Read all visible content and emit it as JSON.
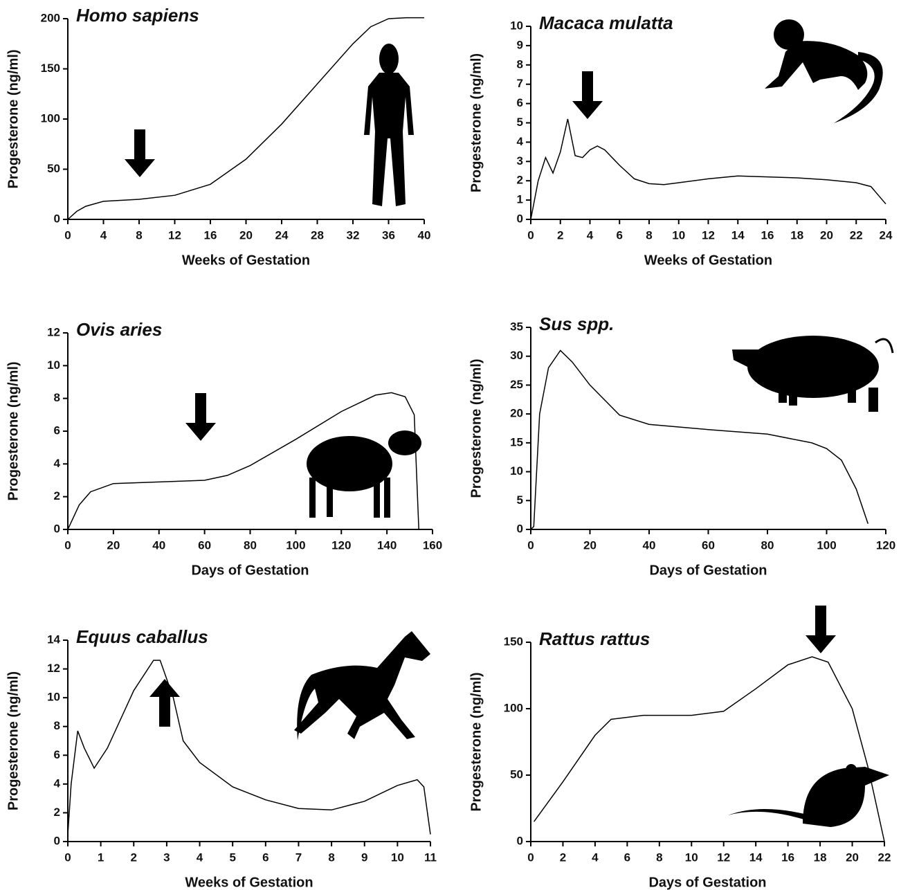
{
  "chart_data": [
    {
      "type": "line",
      "title": "Homo sapiens",
      "xlabel": "Weeks of Gestation",
      "ylabel": "Progesterone (ng/ml)",
      "color": "#000000",
      "x": [
        0,
        1,
        2,
        4,
        8,
        12,
        16,
        20,
        24,
        28,
        32,
        34,
        36,
        38,
        40
      ],
      "values": [
        0,
        8,
        13,
        18,
        20,
        24,
        35,
        60,
        95,
        135,
        175,
        192,
        200,
        201,
        201
      ],
      "xlim": [
        0,
        40
      ],
      "ylim": [
        0,
        200
      ],
      "xticks": [
        0,
        4,
        8,
        12,
        16,
        20,
        24,
        28,
        32,
        36,
        40
      ],
      "yticks": [
        0,
        50,
        100,
        150,
        200
      ]
    },
    {
      "type": "line",
      "title": "Macaca mulatta",
      "xlabel": "Weeks of Gestation",
      "ylabel": "Progesterone (ng/ml)",
      "color": "#000000",
      "x": [
        0,
        0.5,
        1,
        1.5,
        2,
        2.5,
        3,
        3.5,
        4,
        4.5,
        5,
        6,
        7,
        8,
        9,
        10,
        12,
        14,
        16,
        18,
        20,
        22,
        23,
        24
      ],
      "values": [
        0,
        2,
        3.2,
        2.4,
        3.5,
        5.2,
        3.3,
        3.2,
        3.6,
        3.8,
        3.6,
        2.8,
        2.1,
        1.85,
        1.8,
        1.9,
        2.1,
        2.25,
        2.2,
        2.15,
        2.05,
        1.9,
        1.7,
        0.8
      ],
      "xlim": [
        0,
        24
      ],
      "ylim": [
        0,
        10
      ],
      "xticks": [
        0,
        2,
        4,
        6,
        8,
        10,
        12,
        14,
        16,
        18,
        20,
        22,
        24
      ],
      "yticks": [
        0,
        1,
        2,
        3,
        4,
        5,
        6,
        7,
        8,
        9,
        10
      ]
    },
    {
      "type": "line",
      "title": "Ovis aries",
      "xlabel": "Days of Gestation",
      "ylabel": "Progesterone (ng/ml)",
      "color": "#000000",
      "x": [
        0,
        5,
        10,
        20,
        40,
        60,
        70,
        80,
        100,
        120,
        135,
        142,
        148,
        152,
        154
      ],
      "values": [
        0,
        1.5,
        2.3,
        2.8,
        2.9,
        3.0,
        3.3,
        3.9,
        5.5,
        7.2,
        8.2,
        8.35,
        8.1,
        7,
        0
      ],
      "xlim": [
        0,
        160
      ],
      "ylim": [
        0,
        12
      ],
      "xticks": [
        0,
        20,
        40,
        60,
        80,
        100,
        120,
        140,
        160
      ],
      "yticks": [
        0,
        2,
        4,
        6,
        8,
        10,
        12
      ]
    },
    {
      "type": "line",
      "title": "Sus spp.",
      "xlabel": "Days of Gestation",
      "ylabel": "Progesterone (ng/ml)",
      "color": "#000000",
      "x": [
        0,
        1,
        3,
        6,
        10,
        14,
        20,
        30,
        40,
        60,
        80,
        95,
        100,
        105,
        110,
        114
      ],
      "values": [
        0,
        0.5,
        20,
        28,
        31,
        29,
        25,
        19.8,
        18.2,
        17.3,
        16.5,
        15,
        14,
        12,
        7,
        1
      ],
      "xlim": [
        0,
        120
      ],
      "ylim": [
        0,
        35
      ],
      "xticks": [
        0,
        20,
        40,
        60,
        80,
        100,
        120
      ],
      "yticks": [
        0,
        5,
        10,
        15,
        20,
        25,
        30,
        35
      ]
    },
    {
      "type": "line",
      "title": "Equus caballus",
      "xlabel": "Weeks of Gestation",
      "ylabel": "Progesterone (ng/ml)",
      "color": "#000000",
      "x": [
        0,
        0.1,
        0.3,
        0.5,
        0.8,
        1.2,
        2,
        2.6,
        2.8,
        3.2,
        3.5,
        4,
        5,
        6,
        7,
        8,
        9,
        10,
        10.6,
        10.8,
        11
      ],
      "values": [
        0.5,
        4,
        7.7,
        6.5,
        5.1,
        6.5,
        10.5,
        12.6,
        12.6,
        10,
        7,
        5.5,
        3.8,
        2.9,
        2.3,
        2.2,
        2.8,
        3.9,
        4.3,
        3.8,
        0.5
      ],
      "xlim": [
        0,
        11
      ],
      "ylim": [
        0,
        14
      ],
      "xticks": [
        0,
        1,
        2,
        3,
        4,
        5,
        6,
        7,
        8,
        9,
        10,
        11
      ],
      "yticks": [
        0,
        2,
        4,
        6,
        8,
        10,
        12,
        14
      ]
    },
    {
      "type": "line",
      "title": "Rattus rattus",
      "xlabel": "Days of Gestation",
      "ylabel": "Progesterone (ng/ml)",
      "color": "#000000",
      "x": [
        0.2,
        2,
        4,
        5,
        7,
        10,
        12,
        14,
        16,
        17.5,
        18.5,
        20,
        21,
        22
      ],
      "values": [
        15,
        45,
        80,
        92,
        95,
        95,
        98,
        115,
        133,
        139,
        135,
        100,
        55,
        0
      ],
      "xlim": [
        0,
        22
      ],
      "ylim": [
        0,
        150
      ],
      "xticks": [
        0,
        2,
        4,
        6,
        8,
        10,
        12,
        14,
        16,
        18,
        20,
        22
      ],
      "yticks": [
        0,
        50,
        100,
        150
      ]
    }
  ]
}
